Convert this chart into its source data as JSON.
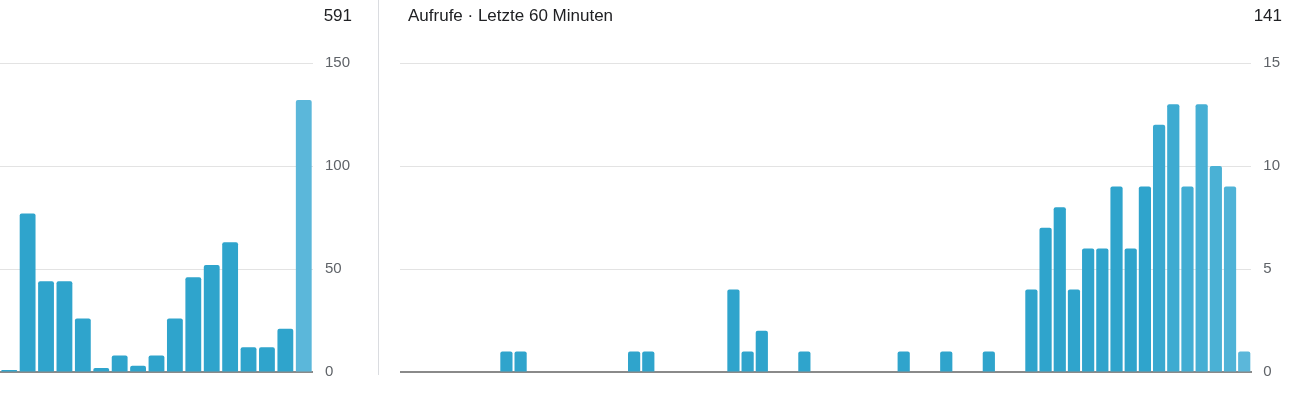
{
  "chart_data": [
    {
      "type": "bar",
      "annotations": [
        "591"
      ],
      "categories": [
        null,
        null,
        null,
        null,
        null,
        null,
        null,
        null,
        null,
        null,
        null,
        null,
        null,
        null,
        null,
        null,
        null
      ],
      "values": [
        1,
        77,
        44,
        44,
        26,
        2,
        8,
        3,
        8,
        26,
        46,
        52,
        63,
        12,
        12,
        21,
        132
      ],
      "colors": [
        "#2fa4cc",
        "#2fa4cc",
        "#2fa4cc",
        "#2fa4cc",
        "#2fa4cc",
        "#2fa4cc",
        "#2fa4cc",
        "#2fa4cc",
        "#2fa4cc",
        "#2fa4cc",
        "#2fa4cc",
        "#2fa4cc",
        "#2fa4cc",
        "#2fa4cc",
        "#2fa4cc",
        "#2fa4cc",
        "#5bb7da"
      ],
      "ylim": [
        0,
        150
      ],
      "yticks": [
        0,
        50,
        100,
        150
      ],
      "grid": "y",
      "tick_labels": "y"
    },
    {
      "type": "bar",
      "title": "Aufrufe · Letzte 60 Minuten",
      "annotations": [
        "141"
      ],
      "categories": [
        null,
        null,
        null,
        null,
        null,
        null,
        null,
        null,
        null,
        null,
        null,
        null,
        null,
        null,
        null,
        null,
        null,
        null,
        null,
        null,
        null,
        null,
        null,
        null,
        null,
        null,
        null,
        null,
        null,
        null,
        null,
        null,
        null,
        null,
        null,
        null,
        null,
        null,
        null,
        null,
        null,
        null,
        null,
        null,
        null,
        null,
        null,
        null,
        null,
        null,
        null,
        null,
        null,
        null,
        null,
        null,
        null,
        null,
        null,
        null
      ],
      "values": [
        0,
        0,
        0,
        0,
        0,
        0,
        0,
        1,
        1,
        0,
        0,
        0,
        0,
        0,
        0,
        0,
        1,
        1,
        0,
        0,
        0,
        0,
        0,
        4,
        1,
        2,
        0,
        0,
        1,
        0,
        0,
        0,
        0,
        0,
        0,
        1,
        0,
        0,
        1,
        0,
        0,
        1,
        0,
        0,
        4,
        7,
        8,
        4,
        6,
        6,
        9,
        6,
        9,
        12,
        13,
        9,
        13,
        10,
        9,
        1
      ],
      "colors": [
        "#2fa4cc",
        "#2fa4cc",
        "#2fa4cc",
        "#2fa4cc",
        "#2fa4cc",
        "#2fa4cc",
        "#2fa4cc",
        "#2fa4cc",
        "#2fa4cc",
        "#2fa4cc",
        "#2fa4cc",
        "#2fa4cc",
        "#2fa4cc",
        "#2fa4cc",
        "#2fa4cc",
        "#2fa4cc",
        "#2fa4cc",
        "#2fa4cc",
        "#2fa4cc",
        "#2fa4cc",
        "#2fa4cc",
        "#2fa4cc",
        "#2fa4cc",
        "#2fa4cc",
        "#2fa4cc",
        "#2fa4cc",
        "#2fa4cc",
        "#2fa4cc",
        "#2fa4cc",
        "#2fa4cc",
        "#2fa4cc",
        "#2fa4cc",
        "#2fa4cc",
        "#2fa4cc",
        "#2fa4cc",
        "#2fa4cc",
        "#2fa4cc",
        "#2fa4cc",
        "#2fa4cc",
        "#2fa4cc",
        "#2fa4cc",
        "#2fa4cc",
        "#2fa4cc",
        "#2fa4cc",
        "#2fa4cc",
        "#2fa4cc",
        "#2fa4cc",
        "#2fa4cc",
        "#2fa4cc",
        "#2fa4cc",
        "#2fa4cc",
        "#2fa4cc",
        "#2fa4cc",
        "#3aa9d0",
        "#3eabd1",
        "#42add3",
        "#46afd4",
        "#4ab1d5",
        "#4fb3d7",
        "#5bb7da"
      ],
      "ylim": [
        0,
        15
      ],
      "yticks": [
        0,
        5,
        10,
        15
      ],
      "grid": "y",
      "tick_labels": "y"
    }
  ]
}
